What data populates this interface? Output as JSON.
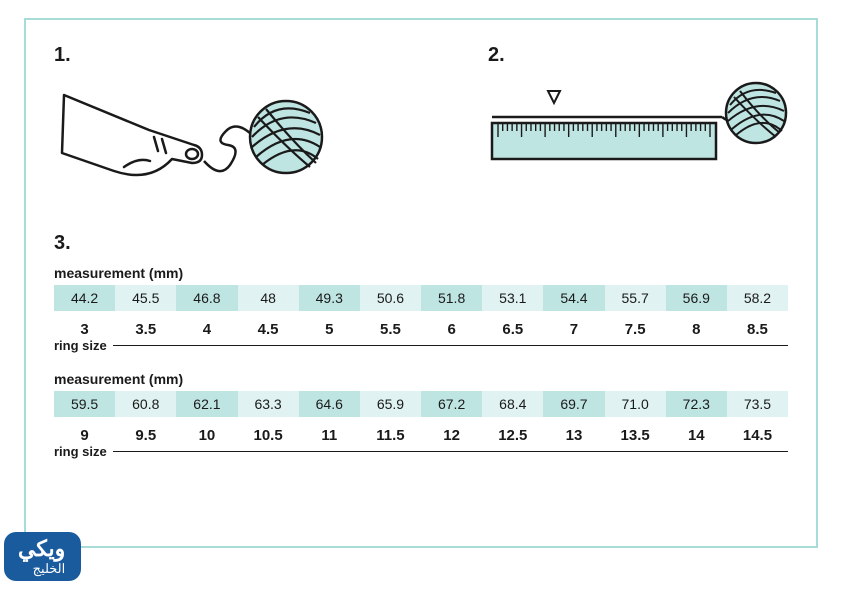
{
  "frame_border_color": "#a8dcd9",
  "accent_fill": "#bfe5e3",
  "accent_fill_alt": "#e0f2f1",
  "line_color": "#1a1a1a",
  "steps": {
    "s1_label": "1.",
    "s2_label": "2.",
    "s3_label": "3."
  },
  "labels": {
    "measurement": "measurement (mm)",
    "ring_size": "ring size"
  },
  "table1": {
    "mm": [
      "44.2",
      "45.5",
      "46.8",
      "48",
      "49.3",
      "50.6",
      "51.8",
      "53.1",
      "54.4",
      "55.7",
      "56.9",
      "58.2"
    ],
    "size": [
      "3",
      "3.5",
      "4",
      "4.5",
      "5",
      "5.5",
      "6",
      "6.5",
      "7",
      "7.5",
      "8",
      "8.5"
    ]
  },
  "table2": {
    "mm": [
      "59.5",
      "60.8",
      "62.1",
      "63.3",
      "64.6",
      "65.9",
      "67.2",
      "68.4",
      "69.7",
      "71.0",
      "72.3",
      "73.5"
    ],
    "size": [
      "9",
      "9.5",
      "10",
      "10.5",
      "11",
      "11.5",
      "12",
      "12.5",
      "13",
      "13.5",
      "14",
      "14.5"
    ]
  },
  "logo": {
    "line1": "ويكي",
    "line2": "الخليج"
  }
}
